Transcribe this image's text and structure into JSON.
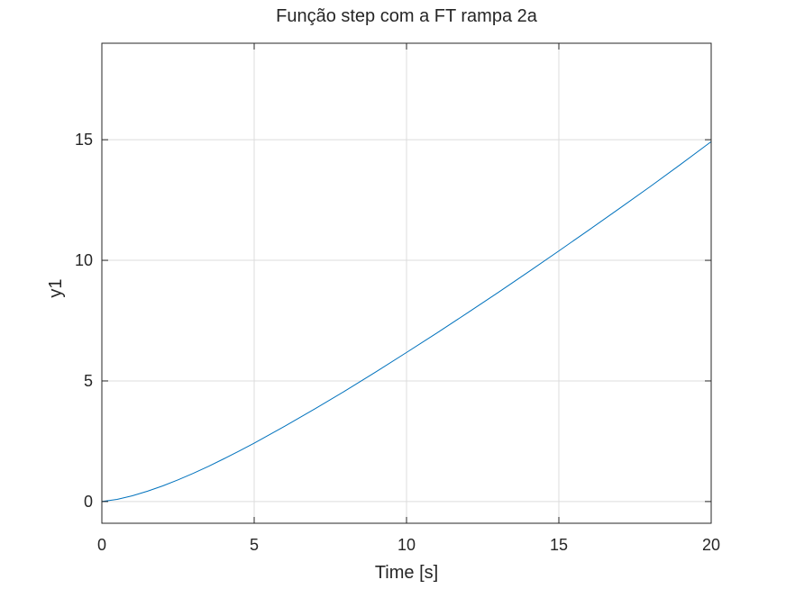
{
  "chart_data": {
    "type": "line",
    "title": "Função step com a FT rampa 2a",
    "xlabel": "Time [s]",
    "ylabel": "y1",
    "xlim": [
      0,
      20
    ],
    "ylim": [
      -0.9,
      19
    ],
    "xticks": [
      0,
      5,
      10,
      15,
      20
    ],
    "xtick_labels": [
      "0",
      "5",
      "10",
      "15",
      "20"
    ],
    "yticks": [
      0,
      5,
      10,
      15
    ],
    "ytick_labels": [
      "0",
      "5",
      "10",
      "15"
    ],
    "grid": true,
    "series": [
      {
        "color": "#0072bd",
        "x": [
          0,
          0.5,
          1,
          1.5,
          2,
          2.5,
          3,
          3.5,
          4,
          4.5,
          5,
          6,
          7,
          8,
          9,
          10,
          11,
          12,
          13,
          14,
          15,
          16,
          17,
          18,
          19,
          20
        ],
        "y": [
          0,
          0.09,
          0.24,
          0.43,
          0.65,
          0.9,
          1.17,
          1.46,
          1.77,
          2.09,
          2.42,
          3.12,
          3.85,
          4.6,
          5.38,
          6.18,
          6.99,
          7.82,
          8.66,
          9.52,
          10.39,
          11.27,
          12.16,
          13.06,
          13.98,
          14.92
        ]
      }
    ]
  }
}
